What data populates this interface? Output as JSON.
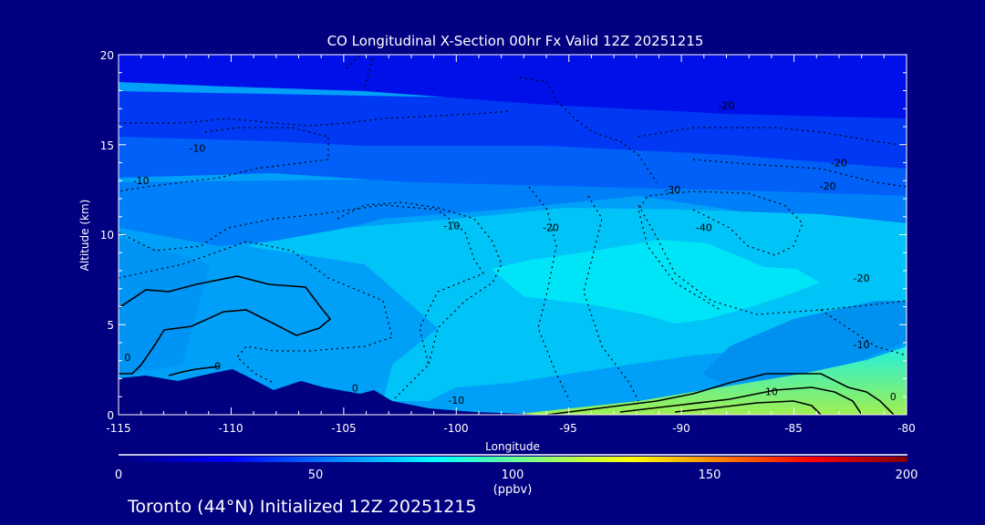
{
  "chart_data": {
    "type": "heatmap",
    "title": "CO Longitudinal X-Section 00hr  Fx Valid 12Z 20251215",
    "xlabel": "Longitude",
    "ylabel": "Altitude (km)",
    "xlim": [
      -115,
      -80
    ],
    "ylim": [
      0,
      20
    ],
    "xticks": [
      "-115",
      "-110",
      "-105",
      "-100",
      "-95",
      "-90",
      "-85",
      "-80"
    ],
    "yticks": [
      "0",
      "5",
      "10",
      "15",
      "20"
    ],
    "colorbar": {
      "range": [
        0,
        200
      ],
      "ticks": [
        "0",
        "50",
        "100",
        "150",
        "200"
      ],
      "unit": "(ppbv)",
      "colors": [
        "#000080",
        "#0000ff",
        "#00ffff",
        "#ffff00",
        "#ff0000",
        "#800000"
      ]
    },
    "contour_labels": [
      {
        "text": "-10",
        "lon": -111.5,
        "alt": 14.6
      },
      {
        "text": "-10",
        "lon": -114.0,
        "alt": 12.8
      },
      {
        "text": "-10",
        "lon": -100.2,
        "alt": 10.3
      },
      {
        "text": "-20",
        "lon": -95.8,
        "alt": 10.2
      },
      {
        "text": "-30",
        "lon": -90.4,
        "alt": 12.3
      },
      {
        "text": "-40",
        "lon": -89.0,
        "alt": 10.2
      },
      {
        "text": "-20",
        "lon": -88.0,
        "alt": 17.0
      },
      {
        "text": "-20",
        "lon": -83.0,
        "alt": 13.8
      },
      {
        "text": "-20",
        "lon": -83.5,
        "alt": 12.5
      },
      {
        "text": "-20",
        "lon": -82.0,
        "alt": 7.4
      },
      {
        "text": "-10",
        "lon": -82.0,
        "alt": 3.7
      },
      {
        "text": "0",
        "lon": -110.6,
        "alt": 2.5
      },
      {
        "text": "0",
        "lon": -114.6,
        "alt": 3.0
      },
      {
        "text": "0",
        "lon": -104.5,
        "alt": 1.3
      },
      {
        "text": "-10",
        "lon": -100.0,
        "alt": 0.6
      },
      {
        "text": "10",
        "lon": -86.0,
        "alt": 1.1
      },
      {
        "text": "0",
        "lon": -80.6,
        "alt": 0.8
      }
    ]
  },
  "footer": "Toronto (44°N) Initialized 12Z 20251215"
}
